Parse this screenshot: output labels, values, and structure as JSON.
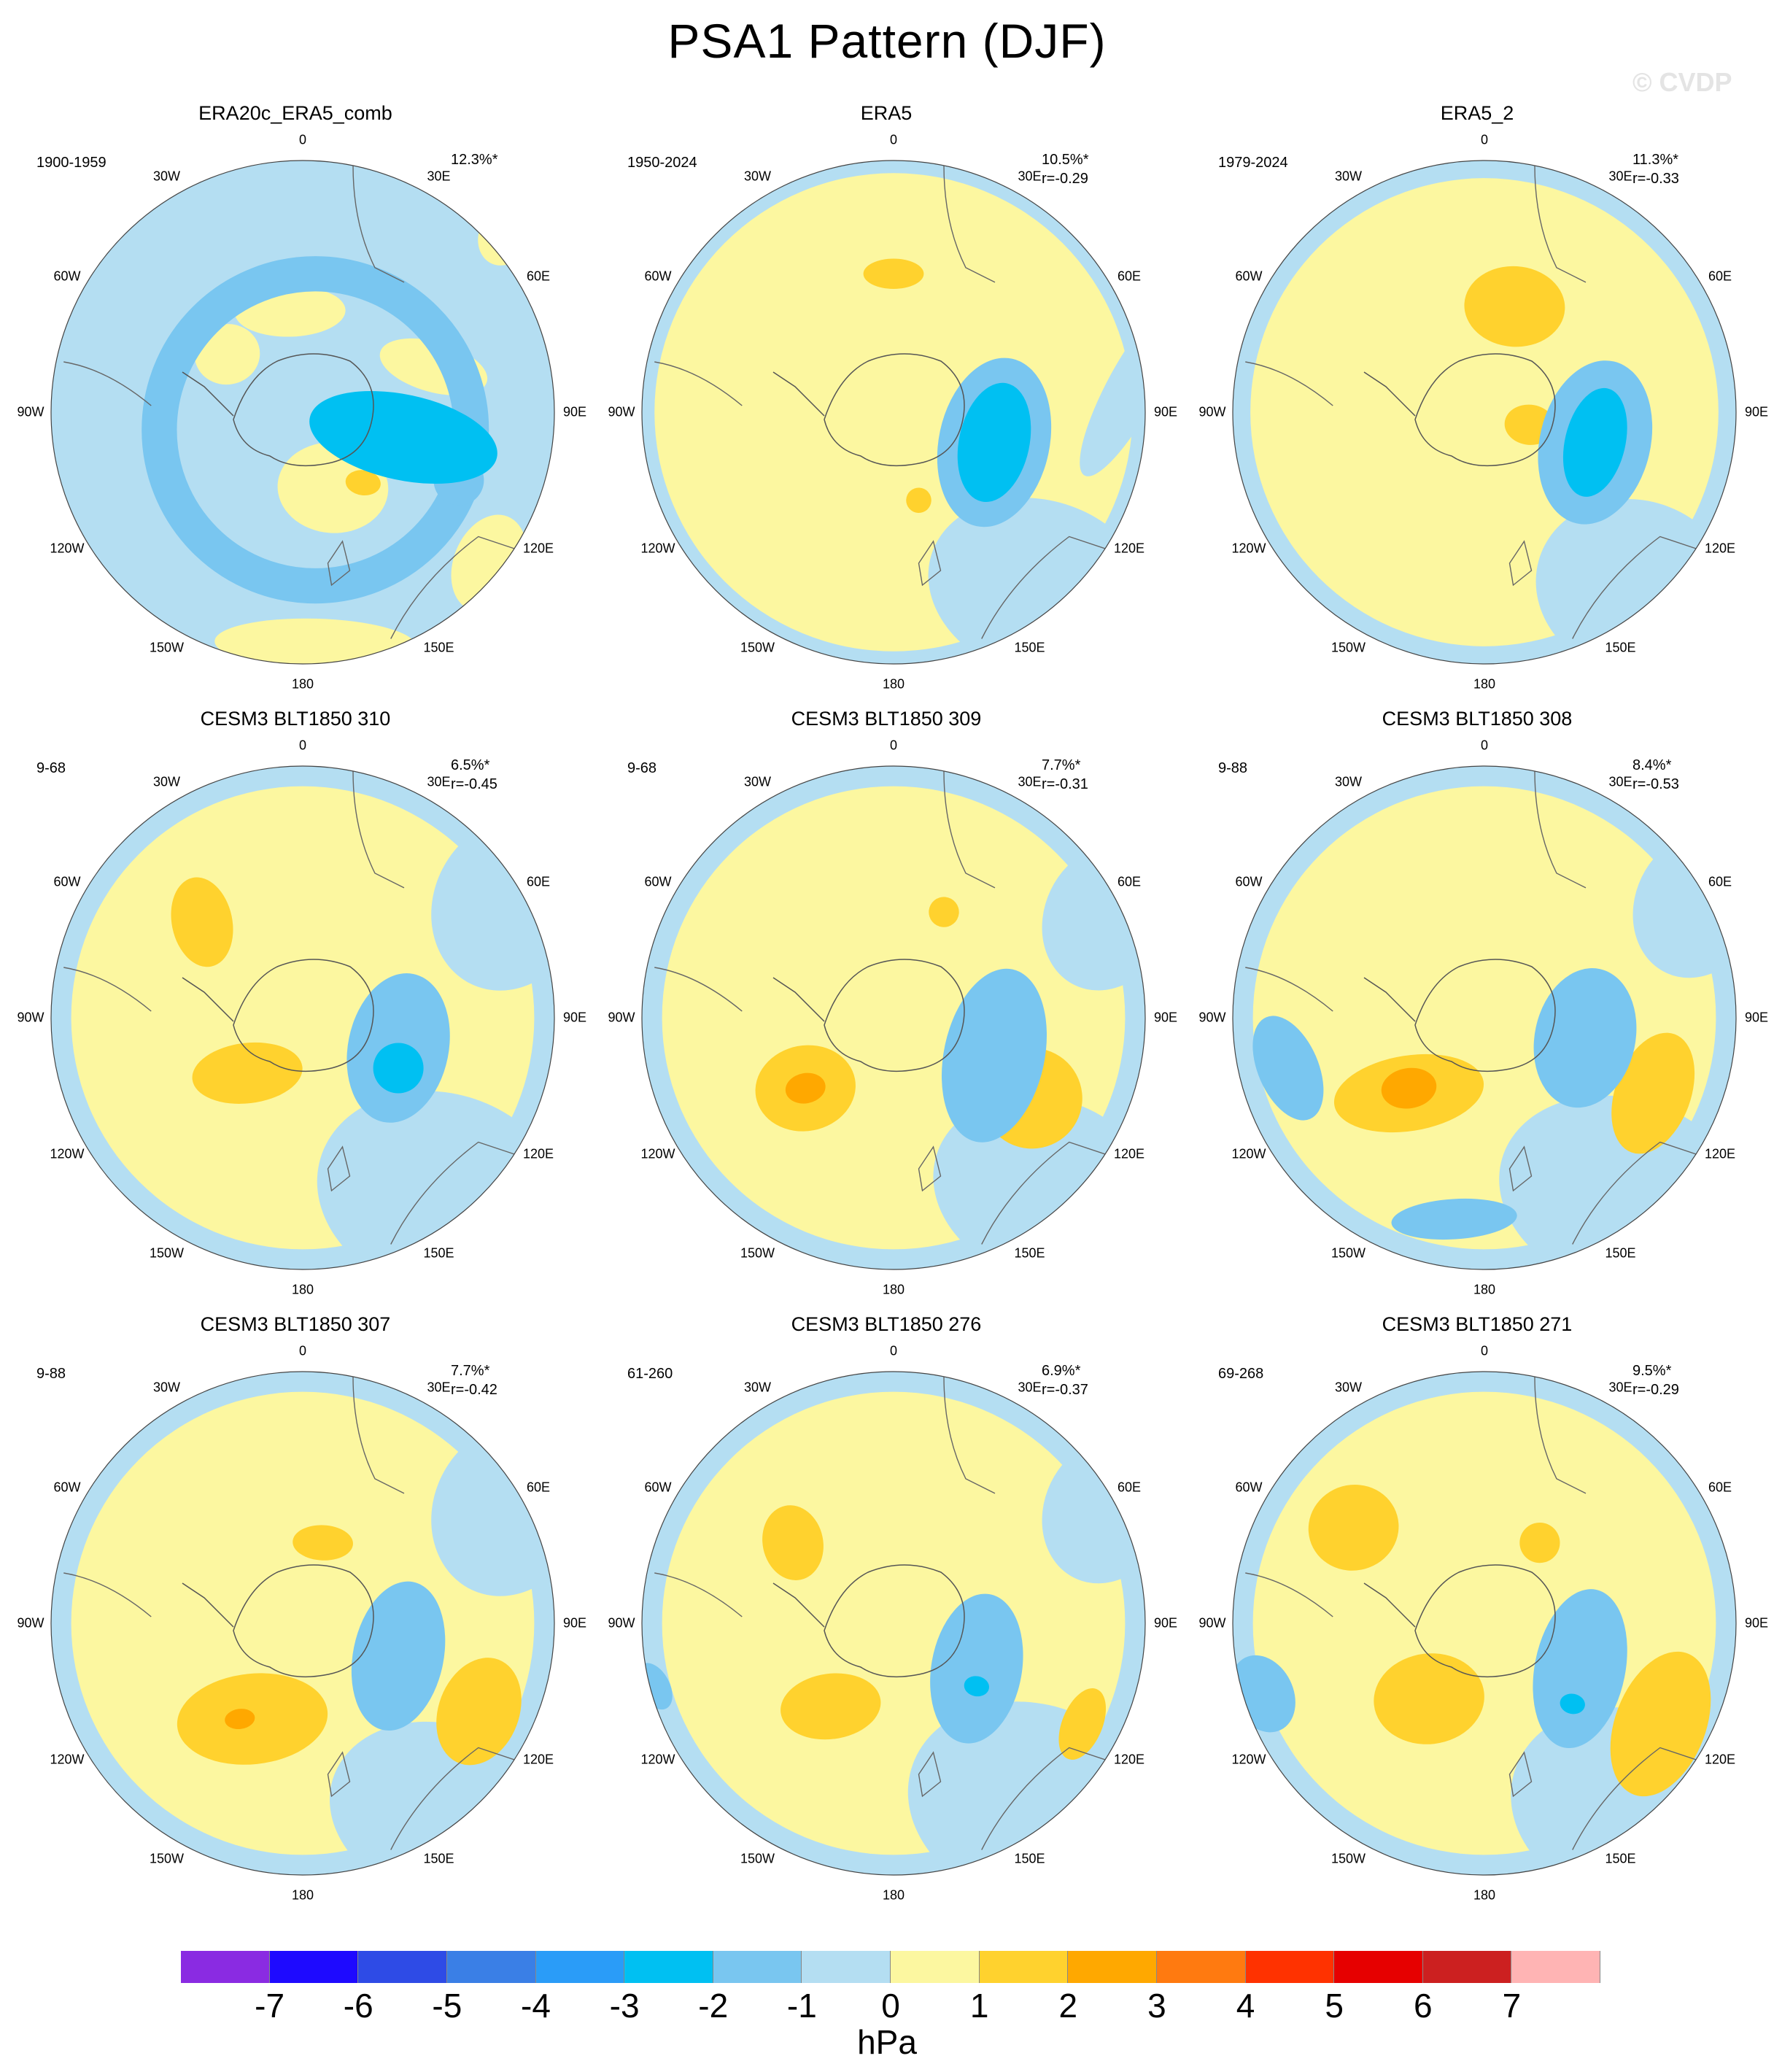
{
  "title": "PSA1 Pattern (DJF)",
  "watermark": "© CVDP",
  "colors": {
    "cb": [
      "#8a2be2",
      "#1e0aff",
      "#2e4be6",
      "#3a7fe6",
      "#2a9cf8",
      "#00c0f2",
      "#79c6f0",
      "#b4def2",
      "#fcf7a0",
      "#ffd22e",
      "#ffa800",
      "#ff7a10",
      "#ff3200",
      "#e60000",
      "#cc2020",
      "#ffb4b4"
    ],
    "neg1": "#b4def2",
    "neg2": "#79c6f0",
    "neg3": "#00c0f2",
    "neg4": "#2a9cf8",
    "pos1": "#fcf7a0",
    "pos2": "#ffd22e",
    "pos3": "#ffa800"
  },
  "colorbar": {
    "ticks": [
      "-7",
      "-6",
      "-5",
      "-4",
      "-3",
      "-2",
      "-1",
      "0",
      "1",
      "2",
      "3",
      "4",
      "5",
      "6",
      "7"
    ],
    "units": "hPa"
  },
  "lon_labels": {
    "l0": "0",
    "l30e": "30E",
    "l60e": "60E",
    "l90e": "90E",
    "l120e": "120E",
    "l150e": "150E",
    "l180": "180",
    "l150w": "150W",
    "l120w": "120W",
    "l90w": "90W",
    "l60w": "60W",
    "l30w": "30W"
  },
  "panels": [
    {
      "title": "ERA20c_ERA5_comb",
      "period": "1900-1959",
      "pct": "12.3%*",
      "corr": "",
      "pos1": [
        [
          0.12,
          0.3,
          0.22,
          0.18
        ],
        [
          0.52,
          -0.18,
          0.22,
          0.1
        ],
        [
          0.74,
          0.6,
          0.14,
          0.2
        ],
        [
          0.05,
          0.92,
          0.4,
          0.1
        ],
        [
          0.8,
          -0.7,
          0.1,
          0.12
        ],
        [
          -0.3,
          -0.23,
          0.13,
          0.12
        ],
        [
          -0.05,
          -0.4,
          0.22,
          0.1
        ]
      ],
      "pos2": [
        [
          0.24,
          0.28,
          0.07,
          0.05
        ]
      ],
      "neg2": [
        [
          0.05,
          0.07,
          0.62,
          0.62,
          "ring"
        ],
        [
          0.62,
          0.27,
          0.1,
          0.1
        ]
      ],
      "neg3": [
        [
          0.4,
          0.1,
          0.38,
          0.17
        ]
      ]
    },
    {
      "title": "ERA5",
      "period": "1950-2024",
      "pct": "10.5%*",
      "corr": "r=-0.29",
      "pos1": [
        [
          0.0,
          0.0,
          0.95,
          0.95,
          "big"
        ]
      ],
      "pos2": [
        [
          0.0,
          -0.55,
          0.12,
          0.06
        ],
        [
          0.1,
          0.35,
          0.05,
          0.05
        ],
        [
          0.45,
          0.05,
          0.06,
          0.06
        ]
      ],
      "neg1": [
        [
          0.58,
          0.7,
          0.45,
          0.35
        ],
        [
          0.95,
          -0.1,
          0.1,
          0.4
        ]
      ],
      "neg2": [
        [
          0.4,
          0.12,
          0.22,
          0.34
        ]
      ],
      "neg3": [
        [
          0.4,
          0.12,
          0.14,
          0.24
        ]
      ]
    },
    {
      "title": "ERA5_2",
      "period": "1979-2024",
      "pct": "11.3%*",
      "corr": "r=-0.33",
      "pos1": [
        [
          0.0,
          0.0,
          0.93,
          0.93,
          "big"
        ]
      ],
      "pos2": [
        [
          0.12,
          -0.42,
          0.2,
          0.16
        ],
        [
          0.18,
          0.05,
          0.1,
          0.08
        ]
      ],
      "neg1": [
        [
          0.6,
          0.7,
          0.4,
          0.35
        ]
      ],
      "neg2": [
        [
          0.44,
          0.12,
          0.22,
          0.33
        ]
      ],
      "neg3": [
        [
          0.44,
          0.12,
          0.12,
          0.22
        ]
      ]
    },
    {
      "title": "CESM3 BLT1850 310",
      "period": "9-68",
      "pct": "6.5%*",
      "corr": "r=-0.45",
      "pos1": [
        [
          0.0,
          0.0,
          0.92,
          0.92,
          "big"
        ]
      ],
      "pos2": [
        [
          -0.4,
          -0.38,
          0.12,
          0.18
        ],
        [
          -0.22,
          0.22,
          0.22,
          0.12
        ]
      ],
      "neg1": [
        [
          0.55,
          0.7,
          0.5,
          0.4
        ],
        [
          0.82,
          -0.45,
          0.3,
          0.35
        ]
      ],
      "neg2": [
        [
          0.38,
          0.12,
          0.2,
          0.3
        ]
      ],
      "neg3": [
        [
          0.38,
          0.2,
          0.1,
          0.1
        ]
      ]
    },
    {
      "title": "CESM3 BLT1850 309",
      "period": "9-68",
      "pct": "7.7%*",
      "corr": "r=-0.31",
      "pos1": [
        [
          0.0,
          0.0,
          0.92,
          0.92,
          "big"
        ]
      ],
      "pos2": [
        [
          -0.35,
          0.28,
          0.2,
          0.17
        ],
        [
          0.55,
          0.32,
          0.2,
          0.2
        ],
        [
          0.2,
          -0.42,
          0.06,
          0.06
        ]
      ],
      "pos3": [
        [
          -0.35,
          0.28,
          0.08,
          0.06
        ]
      ],
      "neg1": [
        [
          0.6,
          0.68,
          0.45,
          0.36
        ],
        [
          0.85,
          -0.4,
          0.25,
          0.3
        ]
      ],
      "neg2": [
        [
          0.4,
          0.15,
          0.2,
          0.35
        ]
      ]
    },
    {
      "title": "CESM3 BLT1850 308",
      "period": "9-88",
      "pct": "8.4%*",
      "corr": "r=-0.53",
      "pos1": [
        [
          0.0,
          0.0,
          0.92,
          0.92,
          "big"
        ]
      ],
      "pos2": [
        [
          -0.3,
          0.3,
          0.3,
          0.15
        ],
        [
          0.67,
          0.3,
          0.15,
          0.25
        ]
      ],
      "pos3": [
        [
          -0.3,
          0.28,
          0.11,
          0.08
        ]
      ],
      "neg1": [
        [
          0.55,
          0.7,
          0.5,
          0.38
        ],
        [
          0.85,
          -0.45,
          0.25,
          0.3
        ]
      ],
      "neg2": [
        [
          0.4,
          0.08,
          0.2,
          0.28
        ],
        [
          -0.78,
          0.2,
          0.12,
          0.22
        ],
        [
          -0.12,
          0.8,
          0.25,
          0.08
        ]
      ]
    },
    {
      "title": "CESM3 BLT1850 307",
      "period": "9-88",
      "pct": "7.7%*",
      "corr": "r=-0.42",
      "pos1": [
        [
          0.0,
          0.0,
          0.92,
          0.92,
          "big"
        ]
      ],
      "pos2": [
        [
          -0.2,
          0.38,
          0.3,
          0.18
        ],
        [
          0.7,
          0.35,
          0.16,
          0.22
        ],
        [
          0.08,
          -0.32,
          0.12,
          0.07
        ]
      ],
      "pos3": [
        [
          -0.25,
          0.38,
          0.06,
          0.04
        ]
      ],
      "neg1": [
        [
          0.55,
          0.75,
          0.45,
          0.35
        ],
        [
          0.82,
          -0.45,
          0.3,
          0.35
        ]
      ],
      "neg2": [
        [
          0.38,
          0.13,
          0.18,
          0.3
        ]
      ]
    },
    {
      "title": "CESM3 BLT1850 276",
      "period": "61-260",
      "pct": "6.9%*",
      "corr": "r=-0.37",
      "pos1": [
        [
          0.0,
          0.0,
          0.92,
          0.92,
          "big"
        ]
      ],
      "pos2": [
        [
          -0.4,
          -0.32,
          0.12,
          0.15
        ],
        [
          -0.25,
          0.33,
          0.2,
          0.13
        ],
        [
          0.75,
          0.4,
          0.08,
          0.15
        ]
      ],
      "neg1": [
        [
          0.55,
          0.72,
          0.5,
          0.4
        ],
        [
          0.85,
          -0.45,
          0.25,
          0.3
        ]
      ],
      "neg2": [
        [
          0.33,
          0.18,
          0.18,
          0.3
        ],
        [
          -0.95,
          0.25,
          0.06,
          0.1
        ]
      ],
      "neg3": [
        [
          0.33,
          0.25,
          0.05,
          0.04
        ]
      ]
    },
    {
      "title": "CESM3 BLT1850 271",
      "period": "69-268",
      "pct": "9.5%*",
      "corr": "r=-0.29",
      "pos1": [
        [
          0.0,
          0.0,
          0.92,
          0.92,
          "big"
        ]
      ],
      "pos2": [
        [
          -0.52,
          -0.38,
          0.18,
          0.17
        ],
        [
          -0.22,
          0.3,
          0.22,
          0.18
        ],
        [
          0.7,
          0.4,
          0.18,
          0.3
        ],
        [
          0.22,
          -0.32,
          0.08,
          0.08
        ]
      ],
      "neg1": [
        [
          0.55,
          0.72,
          0.45,
          0.38
        ]
      ],
      "neg2": [
        [
          0.38,
          0.18,
          0.18,
          0.32
        ],
        [
          -0.88,
          0.28,
          0.12,
          0.16
        ]
      ],
      "neg3": [
        [
          0.35,
          0.32,
          0.05,
          0.04
        ]
      ]
    }
  ]
}
